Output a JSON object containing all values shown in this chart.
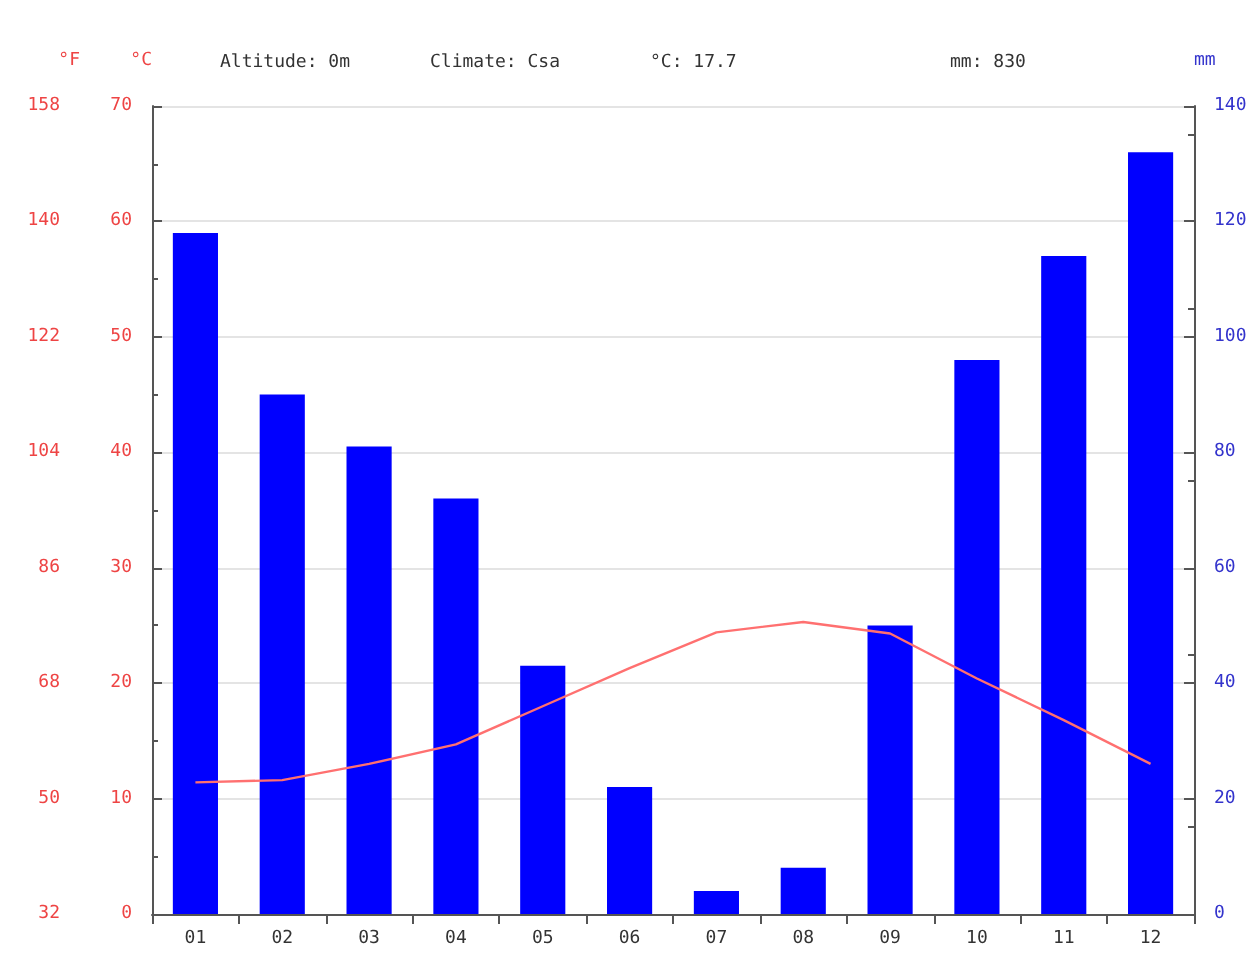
{
  "chart_data": {
    "type": "bar",
    "annotations": [
      "Altitude: 0m",
      "Climate: Csa",
      "°C: 17.7",
      "mm: 830"
    ],
    "categories": [
      "01",
      "02",
      "03",
      "04",
      "05",
      "06",
      "07",
      "08",
      "09",
      "10",
      "11",
      "12"
    ],
    "series": [
      {
        "axis": "y2",
        "color": "#0000ff",
        "values": [
          118,
          90,
          81,
          72,
          43,
          22,
          4,
          8,
          50,
          96,
          114,
          132
        ]
      },
      {
        "type": "line",
        "axis": "y",
        "color": "#ff7070",
        "values": [
          11.4,
          11.6,
          13.0,
          14.7,
          18.0,
          21.3,
          24.4,
          25.3,
          24.3,
          20.4,
          16.8,
          13.0
        ]
      }
    ],
    "ylabel": "°C",
    "ylim": [
      0,
      70
    ],
    "yticks": [
      0,
      10,
      20,
      30,
      40,
      50,
      60,
      70
    ],
    "y3label": "°F",
    "y3lim": [
      32,
      158
    ],
    "y3ticks": [
      32,
      50,
      68,
      86,
      104,
      122,
      140,
      158
    ],
    "y2label": "mm",
    "y2lim": [
      0,
      140
    ],
    "y2ticks": [
      0,
      20,
      40,
      60,
      80,
      100,
      120,
      140
    ],
    "grid": "y",
    "marker": "none",
    "line_style": "solid"
  }
}
